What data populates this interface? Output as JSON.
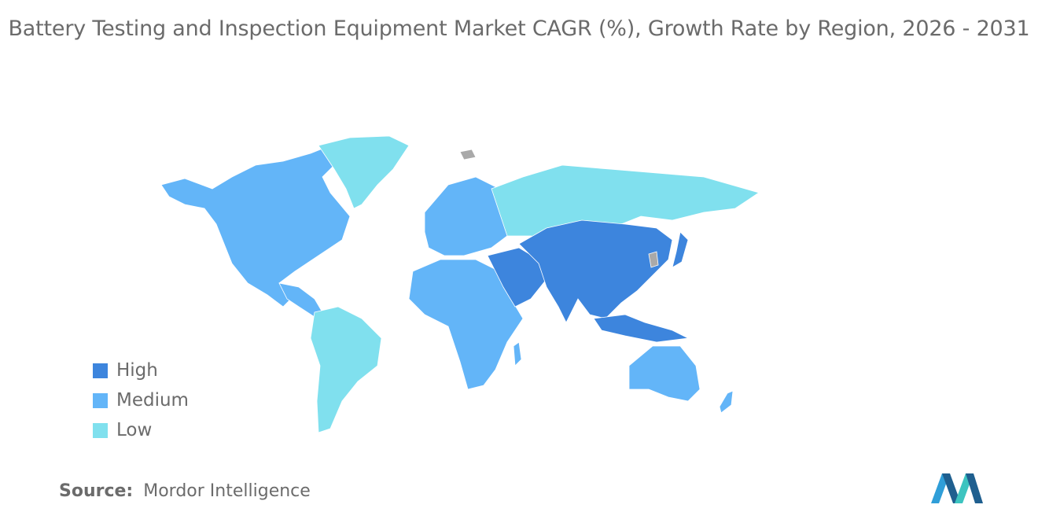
{
  "title": "Battery Testing and Inspection Equipment Market CAGR (%), Growth Rate by Region, 2026 - 2031",
  "legend": [
    {
      "label": "High",
      "color": "#3d85dd"
    },
    {
      "label": "Medium",
      "color": "#63b5f8"
    },
    {
      "label": "Low",
      "color": "#80e0ee"
    }
  ],
  "no_data_color": "#a9a9a9",
  "regions": {
    "north_america": "Medium",
    "greenland": "Low",
    "south_america": "Low",
    "europe": "Medium",
    "africa": "Medium",
    "russia": "Low",
    "middle_east": "High",
    "asia": "High",
    "oceania": "Medium"
  },
  "source": {
    "key": "Source:",
    "value": "Mordor Intelligence"
  }
}
